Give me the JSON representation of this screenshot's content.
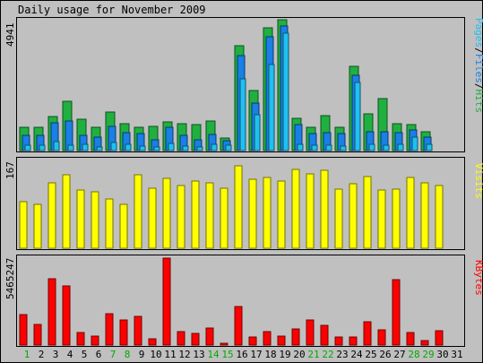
{
  "chart_data": {
    "type": "bar",
    "title": "Daily usage for November 2009",
    "days": [
      "1",
      "2",
      "3",
      "4",
      "5",
      "6",
      "7",
      "8",
      "9",
      "10",
      "11",
      "12",
      "13",
      "14",
      "15",
      "16",
      "17",
      "18",
      "19",
      "20",
      "21",
      "22",
      "23",
      "24",
      "25",
      "26",
      "27",
      "28",
      "29",
      "30",
      "31"
    ],
    "weekend_days": [
      "1",
      "7",
      "8",
      "14",
      "15",
      "21",
      "22",
      "28",
      "29"
    ],
    "top_panel": {
      "ymax_label": "4941",
      "ymax": 4941,
      "right_label": [
        "Pages",
        "/",
        "Files",
        "/",
        "Hits"
      ],
      "series": [
        {
          "name": "Hits",
          "color": "#20b040",
          "values": [
            870,
            870,
            1280,
            1850,
            1170,
            870,
            1470,
            1030,
            870,
            930,
            1090,
            1010,
            980,
            1100,
            470,
            3970,
            2280,
            4620,
            4941,
            1220,
            880,
            1320,
            890,
            3180,
            1390,
            1950,
            1000,
            980,
            700,
            null,
            null
          ]
        },
        {
          "name": "Files",
          "color": "#1a7fe6",
          "values": [
            560,
            560,
            1040,
            1110,
            570,
            510,
            910,
            680,
            650,
            400,
            880,
            580,
            400,
            600,
            380,
            3600,
            1800,
            4300,
            4700,
            990,
            630,
            680,
            650,
            2850,
            700,
            700,
            690,
            770,
            520,
            null,
            null
          ]
        },
        {
          "name": "Pages",
          "color": "#20c0f0",
          "values": [
            210,
            210,
            330,
            200,
            220,
            140,
            300,
            230,
            160,
            120,
            260,
            180,
            150,
            230,
            210,
            2700,
            1340,
            3240,
            4420,
            230,
            200,
            210,
            180,
            2570,
            230,
            200,
            230,
            500,
            230,
            null,
            null
          ]
        }
      ]
    },
    "middle_panel": {
      "ymax_label": "167",
      "ymax": 167,
      "right_label": "Visits",
      "series": [
        {
          "name": "Visits",
          "color": "#ffff00",
          "values": [
            88,
            84,
            125,
            139,
            110,
            107,
            94,
            84,
            140,
            115,
            133,
            120,
            127,
            124,
            114,
            156,
            132,
            135,
            128,
            150,
            141,
            148,
            113,
            122,
            136,
            110,
            113,
            135,
            125,
            119,
            null
          ]
        }
      ]
    },
    "bottom_panel": {
      "ymax_label": "5465247",
      "ymax": 5465247,
      "right_label": "KBytes",
      "series": [
        {
          "name": "KBytes",
          "color": "#ff0000",
          "values": [
            1920000,
            1270000,
            4190000,
            3700000,
            790000,
            550000,
            1970000,
            1570000,
            1830000,
            370000,
            5465247,
            860000,
            750000,
            1080000,
            130000,
            2450000,
            510000,
            870000,
            570000,
            990000,
            1570000,
            1260000,
            530000,
            480000,
            1490000,
            960000,
            4100000,
            780000,
            270000,
            920000,
            null
          ]
        }
      ]
    }
  }
}
